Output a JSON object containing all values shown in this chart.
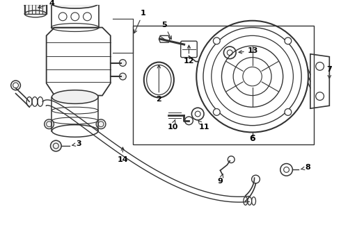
{
  "bg_color": "#ffffff",
  "line_color": "#333333",
  "text_color": "#000000",
  "fig_width": 4.9,
  "fig_height": 3.6,
  "dpi": 100
}
